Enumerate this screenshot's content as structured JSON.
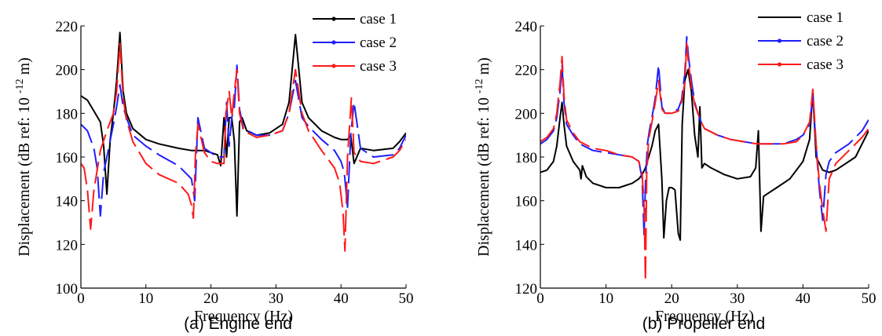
{
  "figure": {
    "colors": {
      "case 1": "#000000",
      "case 2": "#1f1fff",
      "case 3": "#ff1a1a"
    }
  },
  "chart_data": [
    {
      "type": "line",
      "caption": "(a) Engine end",
      "xlabel": "Frequency (Hz)",
      "ylabel": "Displacement (dB ref: 10",
      "ylabel_exponent": "-12",
      "ylabel_unit": " m)",
      "xlim": [
        0,
        50
      ],
      "ylim": [
        100,
        220
      ],
      "xticks": [
        0,
        10,
        20,
        30,
        40,
        50
      ],
      "yticks": [
        100,
        120,
        140,
        160,
        180,
        200,
        220
      ],
      "legend_position": "top-right",
      "series": [
        {
          "name": "case 1",
          "style": "solid",
          "x": [
            0,
            1,
            2,
            3,
            3.5,
            4,
            4.5,
            5,
            5.5,
            6,
            6.5,
            7,
            8,
            10,
            12,
            15,
            17,
            18,
            19,
            20,
            21,
            21.5,
            22,
            22.4,
            22.8,
            23.2,
            23.6,
            24,
            24.4,
            24.8,
            25.5,
            27,
            29,
            31,
            32,
            33,
            34,
            35,
            37,
            39,
            40,
            41,
            41.5,
            42,
            43,
            45,
            48,
            49,
            50
          ],
          "y": [
            188,
            186,
            181,
            176,
            165,
            143,
            168,
            180,
            195,
            217,
            190,
            180,
            173,
            168,
            166,
            164,
            163,
            163,
            163,
            162,
            161,
            156,
            178,
            160,
            178,
            178,
            167,
            133,
            176,
            178,
            172,
            170,
            171,
            175,
            185,
            216,
            185,
            178,
            172,
            169,
            168,
            168,
            170,
            157,
            164,
            163,
            164,
            167,
            171
          ]
        },
        {
          "name": "case 2",
          "style": "dashed",
          "x": [
            0,
            1,
            2,
            2.5,
            3,
            3.5,
            4,
            5,
            5.5,
            6,
            6.5,
            7,
            8,
            10,
            12,
            15,
            17,
            17.5,
            18,
            19,
            20,
            21,
            22,
            22.4,
            22.8,
            23.2,
            23.6,
            24,
            24.4,
            25,
            27,
            29,
            31,
            32,
            33,
            34,
            35,
            37,
            39,
            40,
            40.5,
            41,
            41.5,
            42,
            43,
            45,
            48,
            49,
            50
          ],
          "y": [
            175,
            172,
            164,
            155,
            133,
            153,
            160,
            175,
            183,
            193,
            183,
            178,
            170,
            165,
            161,
            156,
            150,
            140,
            178,
            164,
            162,
            160,
            160,
            185,
            165,
            178,
            183,
            202,
            182,
            173,
            170,
            170,
            172,
            180,
            195,
            178,
            174,
            168,
            163,
            158,
            153,
            137,
            170,
            185,
            164,
            160,
            161,
            164,
            170
          ]
        },
        {
          "name": "case 3",
          "style": "dashed",
          "x": [
            0,
            0.5,
            1,
            1.5,
            2,
            3,
            4,
            5,
            5.5,
            6,
            6.5,
            7,
            8,
            10,
            12,
            15,
            16.5,
            17,
            17.3,
            17.6,
            18,
            19,
            20,
            21,
            22,
            22.3,
            22.8,
            23.2,
            23.6,
            24,
            24.4,
            25,
            27,
            29,
            31,
            32,
            33,
            34,
            35,
            37,
            39,
            39.8,
            40.3,
            40.6,
            41,
            41.6,
            42,
            43,
            45,
            48,
            49,
            50
          ],
          "y": [
            157,
            155,
            145,
            127,
            145,
            163,
            172,
            180,
            190,
            212,
            187,
            177,
            167,
            157,
            152,
            148,
            143,
            138,
            132,
            160,
            175,
            162,
            158,
            157,
            157,
            180,
            190,
            178,
            190,
            200,
            180,
            172,
            169,
            170,
            172,
            180,
            200,
            180,
            172,
            163,
            155,
            148,
            135,
            117,
            160,
            187,
            162,
            158,
            157,
            160,
            163,
            168
          ]
        }
      ]
    },
    {
      "type": "line",
      "caption": "(b) Propeller end",
      "xlabel": "Frequency (Hz)",
      "ylabel": "Displacement (dB ref: 10",
      "ylabel_exponent": "-12",
      "ylabel_unit": " m)",
      "xlim": [
        0,
        50
      ],
      "ylim": [
        120,
        240
      ],
      "xticks": [
        0,
        10,
        20,
        30,
        40,
        50
      ],
      "yticks": [
        120,
        140,
        160,
        180,
        200,
        220,
        240
      ],
      "legend_position": "top-right",
      "series": [
        {
          "name": "case 1",
          "style": "solid",
          "x": [
            0,
            1,
            2,
            2.5,
            3,
            3.3,
            3.6,
            4,
            5,
            6,
            6.2,
            6.4,
            7,
            8,
            10,
            12,
            14,
            15,
            15.5,
            16,
            16.5,
            17,
            17.5,
            18,
            18.5,
            18.8,
            19.2,
            19.6,
            20,
            20.5,
            21,
            21.3,
            21.6,
            22,
            22.5,
            23,
            23.5,
            24,
            24.3,
            24.6,
            25,
            26,
            28,
            30,
            32,
            32.8,
            33.2,
            33.6,
            34,
            36,
            38,
            40,
            41,
            41.5,
            42,
            43,
            44,
            45,
            48,
            50
          ],
          "y": [
            173,
            174,
            178,
            185,
            198,
            205,
            195,
            185,
            178,
            174,
            170,
            176,
            171,
            168,
            166,
            166,
            168,
            170,
            172,
            175,
            180,
            185,
            192,
            195,
            170,
            143,
            160,
            166,
            166,
            165,
            145,
            142,
            195,
            215,
            220,
            210,
            190,
            180,
            203,
            175,
            177,
            175,
            172,
            170,
            171,
            175,
            192,
            146,
            162,
            166,
            170,
            178,
            188,
            210,
            180,
            174,
            173,
            174,
            180,
            192
          ]
        },
        {
          "name": "case 2",
          "style": "dashed",
          "x": [
            0,
            1,
            2,
            2.5,
            3,
            3.3,
            3.6,
            4,
            5,
            6,
            8,
            10,
            12,
            14,
            15,
            15.5,
            15.8,
            16,
            16.3,
            16.6,
            17,
            17.5,
            18,
            18.5,
            19,
            20,
            21,
            21.5,
            22,
            22.3,
            22.6,
            23,
            23.5,
            24,
            24.5,
            25,
            27,
            29,
            31,
            33,
            35,
            37,
            39,
            40,
            41,
            41.5,
            42,
            42.5,
            43,
            43.5,
            44,
            45,
            47,
            49,
            50
          ],
          "y": [
            186,
            188,
            192,
            198,
            210,
            222,
            205,
            195,
            190,
            186,
            183,
            182,
            181,
            180,
            178,
            170,
            144,
            168,
            186,
            192,
            198,
            207,
            222,
            203,
            200,
            200,
            202,
            206,
            218,
            235,
            225,
            215,
            205,
            200,
            196,
            193,
            190,
            188,
            187,
            186,
            186,
            186,
            188,
            190,
            195,
            208,
            185,
            165,
            151,
            172,
            178,
            182,
            186,
            192,
            197
          ]
        },
        {
          "name": "case 3",
          "style": "dashed",
          "x": [
            0,
            1,
            2,
            2.5,
            3,
            3.3,
            3.6,
            4,
            5,
            6,
            8,
            10,
            12,
            14,
            15,
            15.5,
            15.8,
            16,
            16.2,
            16.5,
            17,
            17.5,
            18,
            18.5,
            19,
            20,
            21,
            21.5,
            22,
            22.3,
            22.6,
            23,
            23.5,
            24,
            24.5,
            25,
            27,
            29,
            31,
            33,
            35,
            37,
            39,
            40,
            41,
            41.5,
            42,
            42.5,
            43,
            43.5,
            44,
            45,
            47,
            49,
            50
          ],
          "y": [
            187,
            189,
            193,
            200,
            214,
            226,
            208,
            197,
            191,
            187,
            184,
            183,
            181,
            180,
            178,
            172,
            158,
            123,
            172,
            188,
            196,
            205,
            215,
            202,
            200,
            200,
            201,
            205,
            214,
            232,
            222,
            212,
            204,
            200,
            196,
            193,
            190,
            188,
            187,
            186,
            186,
            186,
            187,
            190,
            196,
            211,
            186,
            168,
            156,
            146,
            170,
            177,
            183,
            189,
            193
          ]
        }
      ]
    }
  ]
}
